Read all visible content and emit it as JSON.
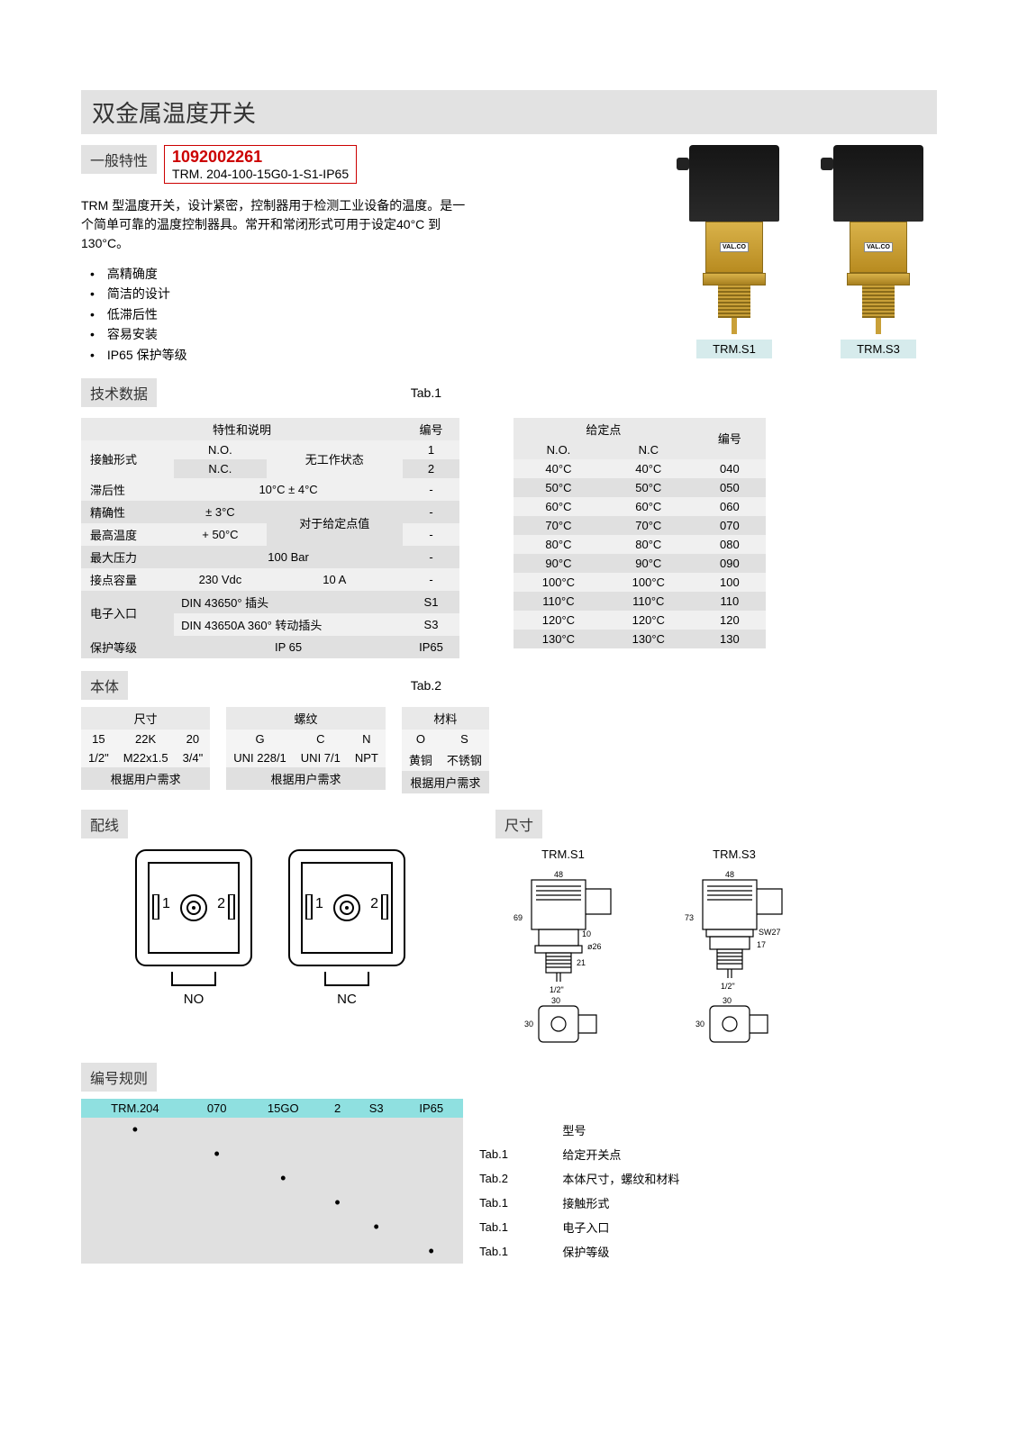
{
  "page_title": "双金属温度开关",
  "general": {
    "heading": "一般特性",
    "code_number": "1092002261",
    "model_code": "TRM. 204-100-15G0-1-S1-IP65",
    "description": "TRM 型温度开关，设计紧密，控制器用于检测工业设备的温度。是一个简单可靠的温度控制器具。常开和常闭形式可用于设定40°C 到130°C。",
    "features": [
      "高精确度",
      "简洁的设计",
      "低滞后性",
      "容易安装",
      "IP65 保护等级"
    ]
  },
  "product_images": {
    "brand": "VAL.CO",
    "labels": [
      "TRM.S1",
      "TRM.S3"
    ]
  },
  "tech": {
    "heading": "技术数据",
    "tab": "Tab.1",
    "table1_headers": [
      "特性和说明",
      "编号"
    ],
    "table1_rows": [
      {
        "label": "接触形式",
        "v1": "N.O.",
        "v2": "无工作状态",
        "code": "1",
        "cls": "odd"
      },
      {
        "label": "",
        "v1": "N.C.",
        "v2": "",
        "code": "2",
        "cls": "even"
      },
      {
        "label": "滞后性",
        "v1": "",
        "v2": "10°C  ± 4°C",
        "code": "-",
        "cls": "odd"
      },
      {
        "label": "精确性",
        "v1": "± 3°C",
        "v2": "对于给定点值",
        "code": "-",
        "cls": "even"
      },
      {
        "label": "最高温度",
        "v1": "+ 50°C",
        "v2": "",
        "code": "-",
        "cls": "odd"
      },
      {
        "label": "最大压力",
        "v1": "",
        "v2": "100 Bar",
        "code": "-",
        "cls": "even"
      },
      {
        "label": "接点容量",
        "v1": "230 Vdc",
        "v2": "10 A",
        "code": "-",
        "cls": "odd"
      },
      {
        "label": "电子入口",
        "v1": "DIN 43650° 插头",
        "v2": "",
        "code": "S1",
        "cls": "even"
      },
      {
        "label": "",
        "v1": "DIN 43650A 360° 转动插头",
        "v2": "",
        "code": "S3",
        "cls": "odd"
      },
      {
        "label": "保护等级",
        "v1": "",
        "v2": "IP 65",
        "code": "IP65",
        "cls": "even"
      }
    ],
    "table2_header_group": "给定点",
    "table2_headers": [
      "N.O.",
      "N.C",
      "编号"
    ],
    "table2_rows": [
      [
        "40°C",
        "40°C",
        "040",
        "odd"
      ],
      [
        "50°C",
        "50°C",
        "050",
        "even"
      ],
      [
        "60°C",
        "60°C",
        "060",
        "odd"
      ],
      [
        "70°C",
        "70°C",
        "070",
        "even"
      ],
      [
        "80°C",
        "80°C",
        "080",
        "odd"
      ],
      [
        "90°C",
        "90°C",
        "090",
        "even"
      ],
      [
        "100°C",
        "100°C",
        "100",
        "odd"
      ],
      [
        "110°C",
        "110°C",
        "110",
        "even"
      ],
      [
        "120°C",
        "120°C",
        "120",
        "odd"
      ],
      [
        "130°C",
        "130°C",
        "130",
        "even"
      ]
    ]
  },
  "body": {
    "heading": "本体",
    "tab": "Tab.2",
    "dim_header": "尺寸",
    "dim_cols": [
      "15",
      "22K",
      "20"
    ],
    "dim_row": [
      "1/2\"",
      "M22x1.5",
      "3/4\""
    ],
    "dim_foot": "根据用户需求",
    "thread_header": "螺纹",
    "thread_cols": [
      "G",
      "C",
      "N"
    ],
    "thread_row": [
      "UNI 228/1",
      "UNI 7/1",
      "NPT"
    ],
    "thread_foot": "根据用户需求",
    "mat_header": "材料",
    "mat_cols": [
      "O",
      "S"
    ],
    "mat_row": [
      "黄铜",
      "不锈钢"
    ],
    "mat_foot": "根据用户需求"
  },
  "wiring": {
    "heading": "配线",
    "labels": [
      "NO",
      "NC"
    ],
    "num1": "1",
    "num2": "2"
  },
  "dimensions": {
    "heading": "尺寸",
    "labels": [
      "TRM.S1",
      "TRM.S3"
    ],
    "dims_s1": {
      "w": "48",
      "h": "69",
      "body": "10",
      "d": "ø26",
      "stem": "21",
      "thread": "1/2\"",
      "foot_w": "30",
      "foot_h": "30"
    },
    "dims_s3": {
      "w": "48",
      "h": "73",
      "hex": "SW27",
      "body": "17",
      "thread": "1/2\"",
      "foot_w": "30",
      "foot_h": "30"
    }
  },
  "rules": {
    "heading": "编号规则",
    "header_cells": [
      "TRM.204",
      "070",
      "15GO",
      "2",
      "S3",
      "IP65"
    ],
    "rows": [
      {
        "dot": 0,
        "tab": "",
        "note": "型号"
      },
      {
        "dot": 1,
        "tab": "Tab.1",
        "note": "给定开关点"
      },
      {
        "dot": 2,
        "tab": "Tab.2",
        "note": "本体尺寸，螺纹和材料"
      },
      {
        "dot": 3,
        "tab": "Tab.1",
        "note": "接触形式"
      },
      {
        "dot": 4,
        "tab": "Tab.1",
        "note": "电子入口"
      },
      {
        "dot": 5,
        "tab": "Tab.1",
        "note": "保护等级"
      }
    ]
  }
}
